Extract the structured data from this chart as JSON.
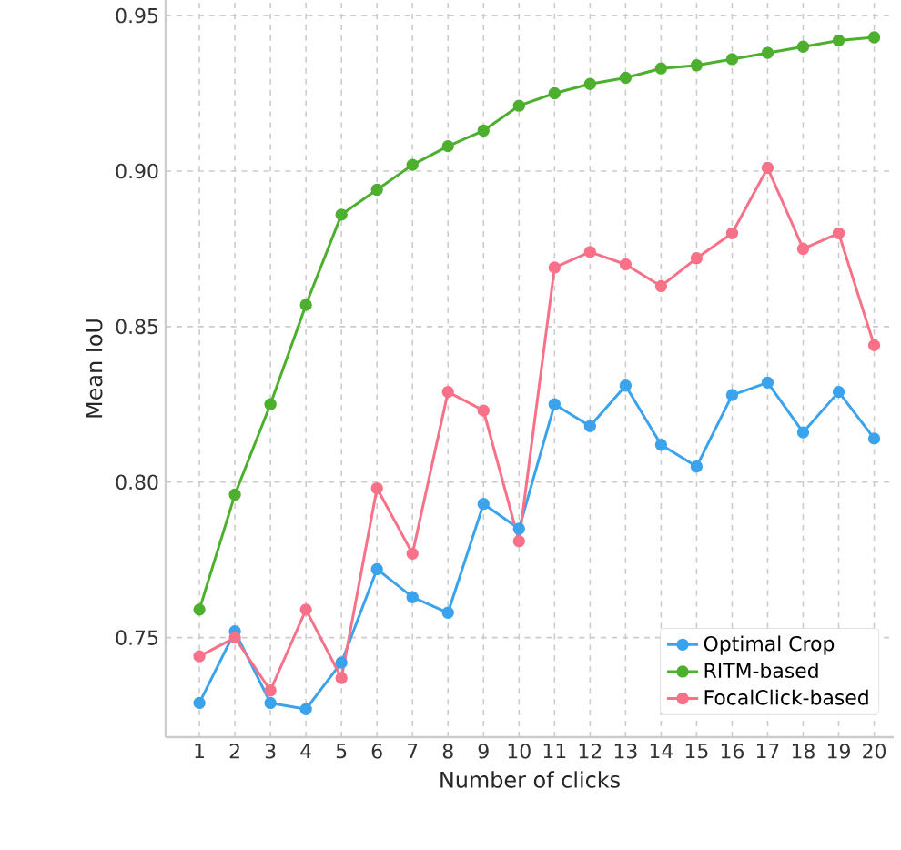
{
  "chart_data": {
    "type": "line",
    "xlabel": "Number of clicks",
    "ylabel": "Mean IoU",
    "x": [
      1,
      2,
      3,
      4,
      5,
      6,
      7,
      8,
      9,
      10,
      11,
      12,
      13,
      14,
      15,
      16,
      17,
      18,
      19,
      20
    ],
    "xlim": [
      0.05,
      20.55
    ],
    "ylim": [
      0.718,
      0.955
    ],
    "xticks": [
      1,
      2,
      3,
      4,
      5,
      6,
      7,
      8,
      9,
      10,
      11,
      12,
      13,
      14,
      15,
      16,
      17,
      18,
      19,
      20
    ],
    "yticks": [
      0.75,
      {
        "value": 0.8,
        "label": "0.80"
      },
      0.85,
      {
        "value": 0.9,
        "label": "0.90"
      },
      0.95
    ],
    "grid": true,
    "legend": "bottom right",
    "marker": "circle",
    "line_style": "solid",
    "series": [
      {
        "name": "Optimal Crop",
        "color": "#3ba3ec",
        "values": [
          0.729,
          0.752,
          0.729,
          0.727,
          0.742,
          0.772,
          0.763,
          0.758,
          0.793,
          0.785,
          0.825,
          0.818,
          0.831,
          0.812,
          0.805,
          0.828,
          0.832,
          0.816,
          0.829,
          0.814
        ]
      },
      {
        "name": "RITM-based",
        "color": "#4daf2e",
        "values": [
          0.759,
          0.796,
          0.825,
          0.857,
          0.886,
          0.894,
          0.902,
          0.908,
          0.913,
          0.921,
          0.925,
          0.928,
          0.93,
          0.933,
          0.934,
          0.936,
          0.938,
          0.94,
          0.942,
          0.943
        ]
      },
      {
        "name": "FocalClick-based",
        "color": "#f77189",
        "values": [
          0.744,
          0.75,
          0.733,
          0.759,
          0.737,
          0.798,
          0.777,
          0.829,
          0.823,
          0.781,
          0.869,
          0.874,
          0.87,
          0.863,
          0.872,
          0.88,
          0.901,
          0.875,
          0.88,
          0.844
        ]
      }
    ]
  }
}
